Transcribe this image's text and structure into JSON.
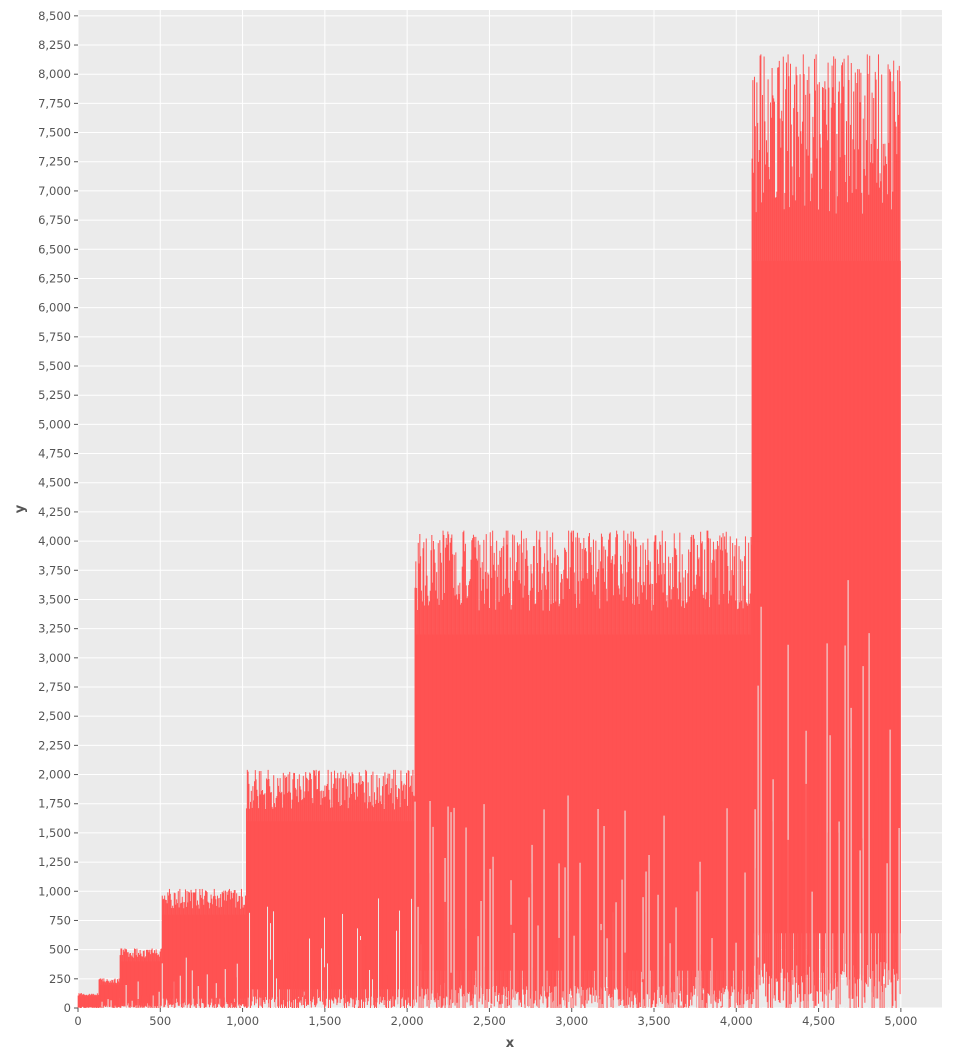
{
  "chart_data": {
    "type": "line",
    "title": "",
    "xlabel": "x",
    "ylabel": "y",
    "xlim": [
      0,
      5250
    ],
    "ylim": [
      0,
      8550
    ],
    "x_ticks": [
      0,
      500,
      1000,
      1500,
      2000,
      2500,
      3000,
      3500,
      4000,
      4500,
      5000
    ],
    "x_tick_labels": [
      "0",
      "500",
      "1,000",
      "1,500",
      "2,000",
      "2,500",
      "3,000",
      "3,500",
      "4,000",
      "4,500",
      "5,000"
    ],
    "y_ticks": [
      0,
      250,
      500,
      750,
      1000,
      1250,
      1500,
      1750,
      2000,
      2250,
      2500,
      2750,
      3000,
      3250,
      3500,
      3750,
      4000,
      4250,
      4500,
      4750,
      5000,
      5250,
      5500,
      5750,
      6000,
      6250,
      6500,
      6750,
      7000,
      7250,
      7500,
      7750,
      8000,
      8250,
      8500
    ],
    "y_tick_labels": [
      "0",
      "250",
      "500",
      "750",
      "1,000",
      "1,250",
      "1,500",
      "1,750",
      "2,000",
      "2,250",
      "2,500",
      "2,750",
      "3,000",
      "3,250",
      "3,500",
      "3,750",
      "4,000",
      "4,250",
      "4,500",
      "4,750",
      "5,000",
      "5,250",
      "5,500",
      "5,750",
      "6,000",
      "6,250",
      "6,500",
      "6,750",
      "7,000",
      "7,250",
      "7,500",
      "7,750",
      "8,000",
      "8,250",
      "8,500"
    ],
    "grid": true,
    "series": [
      {
        "color": "#ff5252",
        "x_range": [
          1,
          5000
        ],
        "segments": [
          {
            "x_start": 1,
            "x_end": 128,
            "y_low": 0,
            "y_high": 125,
            "peak_max": 128
          },
          {
            "x_start": 128,
            "x_end": 256,
            "y_low": 0,
            "y_high": 250,
            "peak_max": 255
          },
          {
            "x_start": 256,
            "x_end": 512,
            "y_low": 0,
            "y_high": 500,
            "peak_max": 510
          },
          {
            "x_start": 512,
            "x_end": 1024,
            "y_low": 0,
            "y_high": 1000,
            "peak_max": 1020
          },
          {
            "x_start": 1024,
            "x_end": 2048,
            "y_low": 0,
            "y_high": 2000,
            "peak_max": 2040
          },
          {
            "x_start": 2048,
            "x_end": 4096,
            "y_low": 0,
            "y_high": 4000,
            "peak_max": 4090
          },
          {
            "x_start": 4096,
            "x_end": 5000,
            "y_low": 0,
            "y_high": 8000,
            "peak_max": 8170
          }
        ]
      }
    ]
  }
}
